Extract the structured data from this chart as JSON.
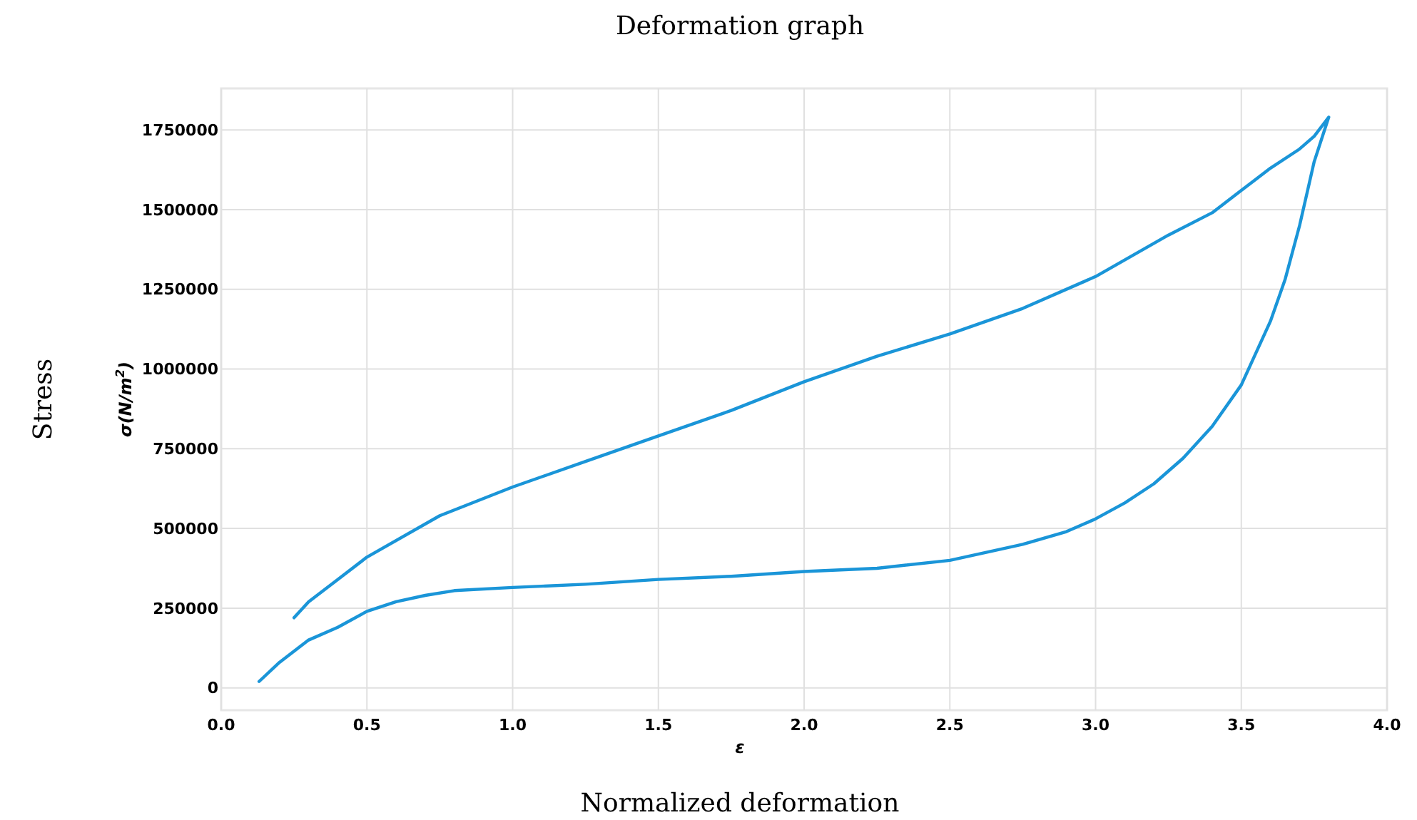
{
  "chart_data": {
    "type": "line",
    "title": "Deformation graph",
    "xlabel": "ε",
    "ylabel": "σ(N/m$^{2}$)",
    "annotations": [
      "Stress",
      "Normalized deformation"
    ],
    "xlim": [
      0,
      4
    ],
    "xticks": [
      {
        "value": 0,
        "label": "0.0"
      },
      {
        "value": 0.5,
        "label": "0.5"
      },
      {
        "value": 1,
        "label": "1.0"
      },
      {
        "value": 1.5,
        "label": "1.5"
      },
      {
        "value": 2,
        "label": "2.0"
      },
      {
        "value": 2.5,
        "label": "2.5"
      },
      {
        "value": 3,
        "label": "3.0"
      },
      {
        "value": 3.5,
        "label": "3.5"
      },
      {
        "value": 4,
        "label": "4.0"
      }
    ],
    "ylim": [
      -70000,
      1880000
    ],
    "yticks": [
      0,
      250000,
      500000,
      750000,
      1000000,
      1250000,
      1500000,
      1750000
    ],
    "grid": true,
    "marker": "none",
    "line_style": "solid",
    "series": [
      {
        "color": "#1a95d8",
        "x": [
          0.13,
          0.2,
          0.3,
          0.4,
          0.5,
          0.6,
          0.7,
          0.8,
          1.0,
          1.25,
          1.5,
          1.75,
          2.0,
          2.25,
          2.5,
          2.75,
          2.9,
          3.0,
          3.1,
          3.2,
          3.3,
          3.4,
          3.5,
          3.55,
          3.6,
          3.65,
          3.7,
          3.75,
          3.8,
          3.75,
          3.7,
          3.6,
          3.5,
          3.4,
          3.25,
          3.0,
          2.75,
          2.5,
          2.25,
          2.0,
          1.75,
          1.5,
          1.25,
          1.0,
          0.75,
          0.5,
          0.4,
          0.3,
          0.25
        ],
        "values": [
          20000,
          80000,
          150000,
          190000,
          240000,
          270000,
          290000,
          305000,
          315000,
          325000,
          340000,
          350000,
          365000,
          375000,
          400000,
          450000,
          490000,
          530000,
          580000,
          640000,
          720000,
          820000,
          950000,
          1050000,
          1150000,
          1280000,
          1450000,
          1650000,
          1790000,
          1730000,
          1690000,
          1630000,
          1560000,
          1490000,
          1420000,
          1290000,
          1190000,
          1110000,
          1040000,
          960000,
          870000,
          790000,
          710000,
          630000,
          540000,
          410000,
          340000,
          270000,
          220000
        ]
      }
    ]
  }
}
